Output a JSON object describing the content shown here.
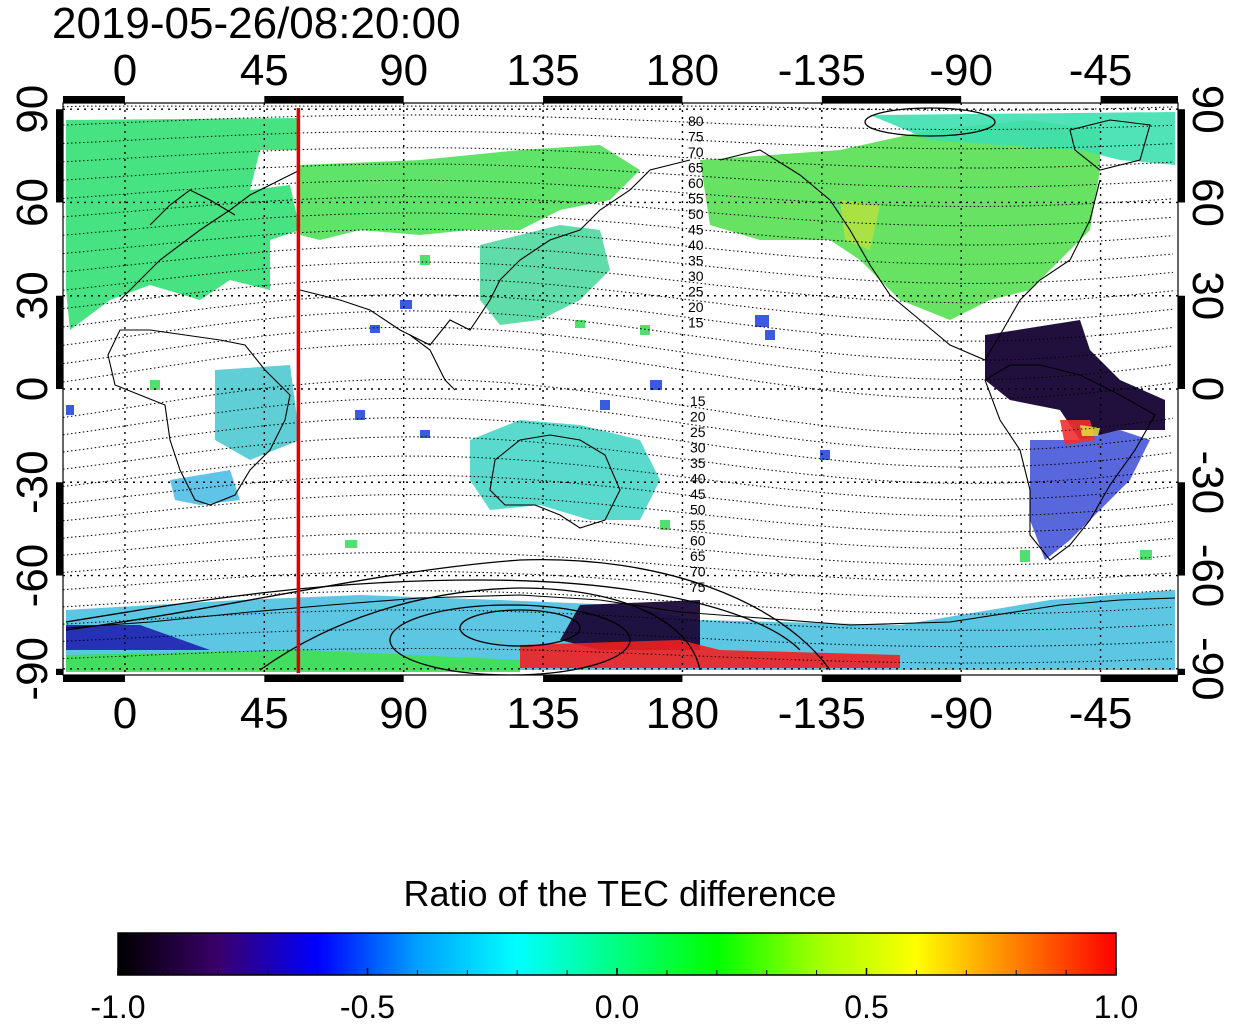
{
  "title": "2019-05-26/08:20:00",
  "map": {
    "top_axis_labels": [
      "0",
      "45",
      "90",
      "135",
      "180",
      "-135",
      "-90",
      "-45"
    ],
    "bottom_axis_labels": [
      "0",
      "45",
      "90",
      "135",
      "180",
      "-135",
      "-90",
      "-45"
    ],
    "left_axis_labels": [
      "90",
      "60",
      "30",
      "0",
      "-30",
      "-60",
      "-90"
    ],
    "right_axis_labels": [
      "90",
      "60",
      "30",
      "0",
      "-30",
      "-60",
      "-90"
    ],
    "longitude_ticks": [
      0,
      45,
      90,
      135,
      180,
      225,
      270,
      315
    ],
    "latitude_ticks": [
      90,
      60,
      30,
      0,
      -30,
      -60,
      -90
    ],
    "lon_range": [
      -20,
      340
    ],
    "lat_range": [
      -92,
      92
    ],
    "marker_longitude": 56,
    "marker_color": "#e00000",
    "contour_labels_north": [
      "80",
      "75",
      "70",
      "65",
      "60",
      "55",
      "50",
      "45",
      "40",
      "35",
      "30",
      "25",
      "20",
      "15"
    ],
    "contour_labels_south": [
      "15",
      "20",
      "25",
      "30",
      "35",
      "40",
      "45",
      "50",
      "55",
      "60",
      "65",
      "70",
      "75"
    ]
  },
  "colorbar": {
    "title": "Ratio of the TEC difference",
    "tick_labels": [
      "-1.0",
      "-0.5",
      "0.0",
      "0.5",
      "1.0"
    ],
    "range": [
      -1.0,
      1.0
    ],
    "colors": [
      "#000000",
      "#3a006a",
      "#0000ff",
      "#00a0ff",
      "#00ffff",
      "#00ff80",
      "#00ff00",
      "#a0ff00",
      "#ffff00",
      "#ff8000",
      "#ff0000"
    ]
  }
}
